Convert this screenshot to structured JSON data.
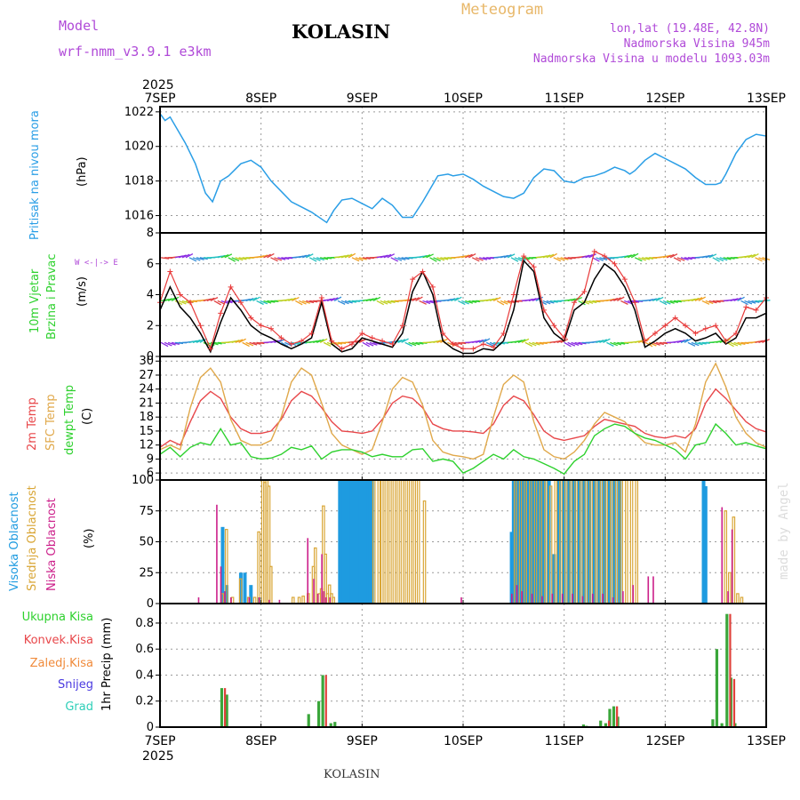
{
  "header": {
    "model_label": "Model",
    "model_name": "wrf-nmm_v3.9.1 e3km",
    "station": "KOLASIN",
    "product": "Meteogram",
    "lonlat": "lon,lat (19.48E, 42.8N)",
    "elevation": "Nadmorska Visina 945m",
    "model_elevation": "Nadmorska Visina u modelu 1093.03m",
    "watermark": "made by Angel",
    "footer_station": "KOLASIN"
  },
  "colors": {
    "pressure": "#2a9ee6",
    "temp2m": "#e8474a",
    "sfc": "#e0a84a",
    "dew": "#2ed12e",
    "high_cloud": "#1e9be0",
    "mid_cloud": "#d9a636",
    "low_cloud": "#cc1f8a",
    "total_precip": "#3aa63a",
    "conv_precip": "#e0403a",
    "frz_precip": "#f08a3a",
    "snow": "#4a3ae0",
    "graupel": "#2ecfb8",
    "wind_mean": "#000000",
    "wind_gust": "#e83a3a"
  },
  "time_axis": {
    "year": "2025",
    "labels": [
      "7SEP",
      "8SEP",
      "9SEP",
      "10SEP",
      "11SEP",
      "12SEP",
      "13SEP"
    ],
    "days": [
      0,
      1,
      2,
      3,
      4,
      5,
      6
    ]
  },
  "chart_data": [
    {
      "type": "line",
      "name": "pressure",
      "ylabel": "Pritisak na nivou mora",
      "units": "(hPa)",
      "ylim": [
        1015,
        1022.3
      ],
      "yticks": [
        1016,
        1018,
        1020,
        1022
      ],
      "x": [
        0,
        0.05,
        0.1,
        0.17,
        0.25,
        0.35,
        0.45,
        0.52,
        0.6,
        0.68,
        0.8,
        0.9,
        1.0,
        1.1,
        1.2,
        1.3,
        1.4,
        1.5,
        1.6,
        1.65,
        1.72,
        1.8,
        1.9,
        2.0,
        2.1,
        2.2,
        2.3,
        2.4,
        2.5,
        2.6,
        2.7,
        2.75,
        2.85,
        2.9,
        3.0,
        3.1,
        3.2,
        3.3,
        3.4,
        3.5,
        3.6,
        3.7,
        3.8,
        3.9,
        4.0,
        4.1,
        4.2,
        4.3,
        4.4,
        4.5,
        4.6,
        4.65,
        4.7,
        4.8,
        4.9,
        5.0,
        5.1,
        5.2,
        5.3,
        5.4,
        5.5,
        5.55,
        5.6,
        5.7,
        5.8,
        5.9,
        6.0
      ],
      "values": [
        1021.9,
        1021.5,
        1021.7,
        1021.0,
        1020.2,
        1019.0,
        1017.3,
        1016.8,
        1018.0,
        1018.3,
        1019.0,
        1019.2,
        1018.8,
        1018.0,
        1017.4,
        1016.8,
        1016.5,
        1016.2,
        1015.8,
        1015.6,
        1016.3,
        1016.9,
        1017.0,
        1016.7,
        1016.4,
        1017.0,
        1016.6,
        1015.9,
        1015.9,
        1016.8,
        1017.8,
        1018.3,
        1018.4,
        1018.3,
        1018.4,
        1018.1,
        1017.7,
        1017.4,
        1017.1,
        1017.0,
        1017.3,
        1018.2,
        1018.7,
        1018.6,
        1018.0,
        1017.9,
        1018.2,
        1018.3,
        1018.5,
        1018.8,
        1018.6,
        1018.4,
        1018.6,
        1019.2,
        1019.6,
        1019.3,
        1019.0,
        1018.7,
        1018.2,
        1017.8,
        1017.8,
        1017.9,
        1018.4,
        1019.6,
        1020.4,
        1020.7,
        1020.6
      ]
    },
    {
      "type": "line",
      "name": "wind",
      "ylabel": "10m Vjetar Brzina i Pravac",
      "units": "(m/s)",
      "direction_legend": "W <-|-> E",
      "ylim": [
        0,
        8
      ],
      "yticks": [
        0,
        2,
        4,
        6,
        8
      ],
      "barb_levels": [
        0.9,
        3.6,
        6.4
      ],
      "x": [
        0,
        0.1,
        0.2,
        0.3,
        0.4,
        0.5,
        0.6,
        0.7,
        0.8,
        0.9,
        1.0,
        1.1,
        1.2,
        1.3,
        1.4,
        1.5,
        1.6,
        1.7,
        1.8,
        1.9,
        2.0,
        2.1,
        2.2,
        2.3,
        2.4,
        2.5,
        2.6,
        2.7,
        2.8,
        2.9,
        3.0,
        3.1,
        3.2,
        3.3,
        3.4,
        3.5,
        3.6,
        3.7,
        3.8,
        3.9,
        4.0,
        4.1,
        4.2,
        4.3,
        4.4,
        4.5,
        4.6,
        4.7,
        4.8,
        4.9,
        5.0,
        5.1,
        5.2,
        5.3,
        5.4,
        5.5,
        5.6,
        5.7,
        5.8,
        5.9,
        6.0
      ],
      "series": [
        {
          "name": "mean",
          "values": [
            3.0,
            4.5,
            3.2,
            2.5,
            1.5,
            0.3,
            2.2,
            3.8,
            3.0,
            2.0,
            1.5,
            1.2,
            0.8,
            0.5,
            0.8,
            1.2,
            3.5,
            0.8,
            0.3,
            0.5,
            1.2,
            1.0,
            0.8,
            0.6,
            1.5,
            4.2,
            5.5,
            4.0,
            1.0,
            0.5,
            0.2,
            0.2,
            0.5,
            0.4,
            1.0,
            3.0,
            6.2,
            5.5,
            2.5,
            1.5,
            1.0,
            3.0,
            3.5,
            5.0,
            6.0,
            5.5,
            4.5,
            3.0,
            0.6,
            1.0,
            1.5,
            1.8,
            1.5,
            1.0,
            1.2,
            1.5,
            0.8,
            1.2,
            2.5,
            2.5,
            2.8
          ]
        },
        {
          "name": "gust",
          "values": [
            3.5,
            5.5,
            4.0,
            3.5,
            2.0,
            0.5,
            2.8,
            4.5,
            3.5,
            2.5,
            2.0,
            1.8,
            1.2,
            0.8,
            1.0,
            1.5,
            3.8,
            1.0,
            0.5,
            0.8,
            1.5,
            1.2,
            1.0,
            0.8,
            2.0,
            5.0,
            5.5,
            4.5,
            1.5,
            0.8,
            0.5,
            0.5,
            0.8,
            0.6,
            1.5,
            4.0,
            6.5,
            5.8,
            3.0,
            2.0,
            1.2,
            3.5,
            4.2,
            6.8,
            6.5,
            6.0,
            5.0,
            3.5,
            1.0,
            1.5,
            2.0,
            2.5,
            2.0,
            1.5,
            1.8,
            2.0,
            1.0,
            1.5,
            3.2,
            3.0,
            3.8
          ]
        }
      ]
    },
    {
      "type": "line",
      "name": "temperature",
      "ylabel": [
        "2m Temp",
        "SFC Temp",
        "dewpt Temp"
      ],
      "units": "(C)",
      "ylim": [
        4.5,
        31
      ],
      "yticks": [
        6,
        9,
        12,
        15,
        18,
        21,
        24,
        27,
        30
      ],
      "x": [
        0,
        0.1,
        0.2,
        0.3,
        0.4,
        0.5,
        0.6,
        0.7,
        0.8,
        0.9,
        1.0,
        1.1,
        1.2,
        1.3,
        1.4,
        1.5,
        1.6,
        1.7,
        1.8,
        1.9,
        2.0,
        2.1,
        2.2,
        2.3,
        2.4,
        2.5,
        2.6,
        2.7,
        2.8,
        2.9,
        3.0,
        3.1,
        3.2,
        3.3,
        3.4,
        3.5,
        3.6,
        3.7,
        3.8,
        3.9,
        4.0,
        4.1,
        4.2,
        4.3,
        4.4,
        4.5,
        4.6,
        4.7,
        4.8,
        4.9,
        5.0,
        5.1,
        5.2,
        5.3,
        5.4,
        5.5,
        5.6,
        5.7,
        5.8,
        5.9,
        6.0
      ],
      "series": [
        {
          "name": "2m Temp",
          "values": [
            11.5,
            13.0,
            12.0,
            17.0,
            21.5,
            23.5,
            22.0,
            18.0,
            15.5,
            14.5,
            14.5,
            15.0,
            17.5,
            21.5,
            23.5,
            22.5,
            20.0,
            17.0,
            15.0,
            14.8,
            14.5,
            15.0,
            17.5,
            21.0,
            22.5,
            22.0,
            20.0,
            16.5,
            15.5,
            15.0,
            15.0,
            14.8,
            14.5,
            16.5,
            20.5,
            22.5,
            21.5,
            18.5,
            15.0,
            13.5,
            13.0,
            13.5,
            14.0,
            16.0,
            17.5,
            17.0,
            16.5,
            16.0,
            14.5,
            13.8,
            13.5,
            14.0,
            13.5,
            15.5,
            21.0,
            24.0,
            22.0,
            19.5,
            17.0,
            15.5,
            14.8
          ]
        },
        {
          "name": "SFC Temp",
          "values": [
            11.0,
            12.0,
            11.0,
            20.0,
            26.5,
            28.5,
            25.5,
            17.5,
            13.0,
            12.0,
            12.0,
            13.0,
            18.0,
            25.5,
            28.5,
            27.0,
            21.0,
            14.5,
            12.0,
            11.0,
            10.0,
            11.0,
            17.0,
            24.0,
            26.5,
            25.5,
            20.5,
            13.0,
            10.5,
            9.8,
            9.5,
            9.0,
            10.0,
            18.0,
            25.0,
            27.0,
            25.5,
            17.0,
            11.0,
            9.5,
            9.0,
            10.5,
            13.0,
            16.5,
            19.0,
            18.0,
            17.0,
            14.5,
            12.5,
            12.0,
            12.0,
            12.5,
            10.5,
            16.5,
            25.5,
            29.5,
            24.5,
            18.0,
            14.5,
            12.5,
            11.5
          ]
        },
        {
          "name": "dewpt Temp",
          "values": [
            10.0,
            11.5,
            9.5,
            11.5,
            12.5,
            12.0,
            15.5,
            12.0,
            12.5,
            9.5,
            9.0,
            9.2,
            10.0,
            11.5,
            11.0,
            11.8,
            9.0,
            10.5,
            11.0,
            11.0,
            10.5,
            9.5,
            10.0,
            9.5,
            9.5,
            11.0,
            11.2,
            8.5,
            9.0,
            8.5,
            6.0,
            7.0,
            8.5,
            10.0,
            9.0,
            11.0,
            9.5,
            9.0,
            8.0,
            7.0,
            5.8,
            8.5,
            10.0,
            14.0,
            15.5,
            16.5,
            16.0,
            14.5,
            13.5,
            13.0,
            12.0,
            11.0,
            9.0,
            12.0,
            12.5,
            16.5,
            14.5,
            12.0,
            12.5,
            11.8,
            11.2
          ]
        }
      ]
    },
    {
      "type": "bar",
      "name": "cloudiness",
      "ylabel": [
        "Visoka Oblacnost",
        "Srednja Oblacnost",
        "Niska Oblacnost"
      ],
      "units": "(%)",
      "ylim": [
        0,
        100
      ],
      "yticks": [
        0,
        25,
        50,
        75,
        100
      ],
      "series": [
        {
          "name": "Visoka",
          "x": [
            0.62,
            0.66,
            0.8,
            0.84,
            0.9,
            0.98,
            1.78,
            1.8,
            1.82,
            1.84,
            1.86,
            1.88,
            1.9,
            1.92,
            1.94,
            1.96,
            1.98,
            2.0,
            2.02,
            2.04,
            2.06,
            2.08,
            2.1,
            3.48,
            3.5,
            3.52,
            3.54,
            3.56,
            3.58,
            3.6,
            3.62,
            3.64,
            3.66,
            3.68,
            3.7,
            3.72,
            3.74,
            3.76,
            3.78,
            3.8,
            3.85,
            3.9,
            3.95,
            4.0,
            4.05,
            4.1,
            4.15,
            4.2,
            4.25,
            4.3,
            4.35,
            4.4,
            4.45,
            4.5,
            4.55,
            5.38,
            5.4
          ],
          "values": [
            62,
            15,
            25,
            25,
            15,
            5,
            100,
            100,
            100,
            100,
            100,
            100,
            100,
            100,
            100,
            100,
            100,
            100,
            100,
            100,
            100,
            100,
            100,
            58,
            100,
            100,
            100,
            100,
            100,
            100,
            100,
            100,
            100,
            100,
            100,
            100,
            100,
            100,
            100,
            100,
            100,
            40,
            100,
            100,
            100,
            100,
            100,
            100,
            100,
            100,
            100,
            100,
            100,
            100,
            100,
            100,
            95
          ]
        },
        {
          "name": "Srednja",
          "x": [
            0.6,
            0.64,
            0.7,
            0.78,
            0.86,
            0.92,
            0.96,
            1.0,
            1.02,
            1.04,
            1.06,
            1.08,
            1.3,
            1.36,
            1.4,
            1.45,
            1.5,
            1.52,
            1.56,
            1.58,
            1.6,
            1.62,
            1.64,
            1.66,
            1.68,
            1.7,
            2.1,
            2.15,
            2.18,
            2.22,
            2.26,
            2.3,
            2.34,
            2.38,
            2.42,
            2.46,
            2.5,
            2.54,
            2.6,
            3.5,
            3.55,
            3.6,
            3.65,
            3.7,
            3.75,
            3.8,
            3.85,
            3.9,
            3.95,
            4.0,
            4.05,
            4.1,
            4.15,
            4.2,
            4.25,
            4.3,
            4.35,
            4.4,
            4.45,
            4.5,
            4.55,
            4.6,
            4.65,
            4.7,
            5.58,
            5.62,
            5.66,
            5.7,
            5.74
          ],
          "values": [
            8,
            60,
            5,
            20,
            5,
            5,
            58,
            100,
            98,
            100,
            95,
            30,
            5,
            5,
            6,
            8,
            30,
            45,
            8,
            12,
            79,
            40,
            8,
            15,
            8,
            5,
            100,
            100,
            100,
            100,
            100,
            100,
            100,
            100,
            100,
            100,
            100,
            100,
            83,
            100,
            100,
            100,
            100,
            100,
            100,
            100,
            95,
            100,
            100,
            100,
            100,
            100,
            100,
            100,
            100,
            100,
            100,
            100,
            100,
            100,
            100,
            100,
            100,
            100,
            75,
            25,
            70,
            8,
            5
          ]
        },
        {
          "name": "Niska",
          "x": [
            0.4,
            0.58,
            0.62,
            0.66,
            0.72,
            0.9,
            1.0,
            1.1,
            1.2,
            1.48,
            1.54,
            1.58,
            1.62,
            1.64,
            1.66,
            1.7,
            3.0,
            3.5,
            3.55,
            3.6,
            3.7,
            3.8,
            3.9,
            4.0,
            4.1,
            4.2,
            4.3,
            4.4,
            4.5,
            4.6,
            4.7,
            4.85,
            4.9,
            5.58,
            5.64,
            5.68
          ],
          "values": [
            5,
            80,
            30,
            10,
            5,
            5,
            5,
            3,
            3,
            53,
            20,
            8,
            40,
            10,
            5,
            5,
            5,
            8,
            15,
            10,
            8,
            6,
            8,
            8,
            8,
            6,
            8,
            8,
            5,
            10,
            15,
            22,
            22,
            78,
            10,
            60
          ]
        }
      ]
    },
    {
      "type": "bar",
      "name": "precipitation",
      "ylabel": "1hr Precip (mm)",
      "legend": [
        "Ukupna Kisa",
        "Konvek.Kisa",
        "Zaledj.Kisa",
        "Snijeg",
        "Grad"
      ],
      "ylim": [
        0,
        0.95
      ],
      "yticks": [
        0,
        0.2,
        0.4,
        0.6,
        0.8
      ],
      "series": [
        {
          "name": "Ukupna Kisa",
          "x": [
            0.62,
            0.67,
            1.48,
            1.58,
            1.62,
            1.7,
            1.74,
            4.2,
            4.23,
            4.37,
            4.42,
            4.46,
            4.5,
            4.54,
            5.48,
            5.52,
            5.57,
            5.62,
            5.66,
            5.7
          ],
          "values": [
            0.3,
            0.25,
            0.1,
            0.2,
            0.4,
            0.03,
            0.04,
            0.02,
            0.01,
            0.05,
            0.03,
            0.14,
            0.16,
            0.08,
            0.06,
            0.6,
            0.03,
            0.87,
            0.38,
            0.03
          ]
        },
        {
          "name": "Konvek.Kisa",
          "x": [
            0.63,
            1.63,
            4.43,
            4.51,
            5.63,
            5.67
          ],
          "values": [
            0.3,
            0.4,
            0.05,
            0.16,
            0.87,
            0.37
          ]
        }
      ]
    }
  ]
}
